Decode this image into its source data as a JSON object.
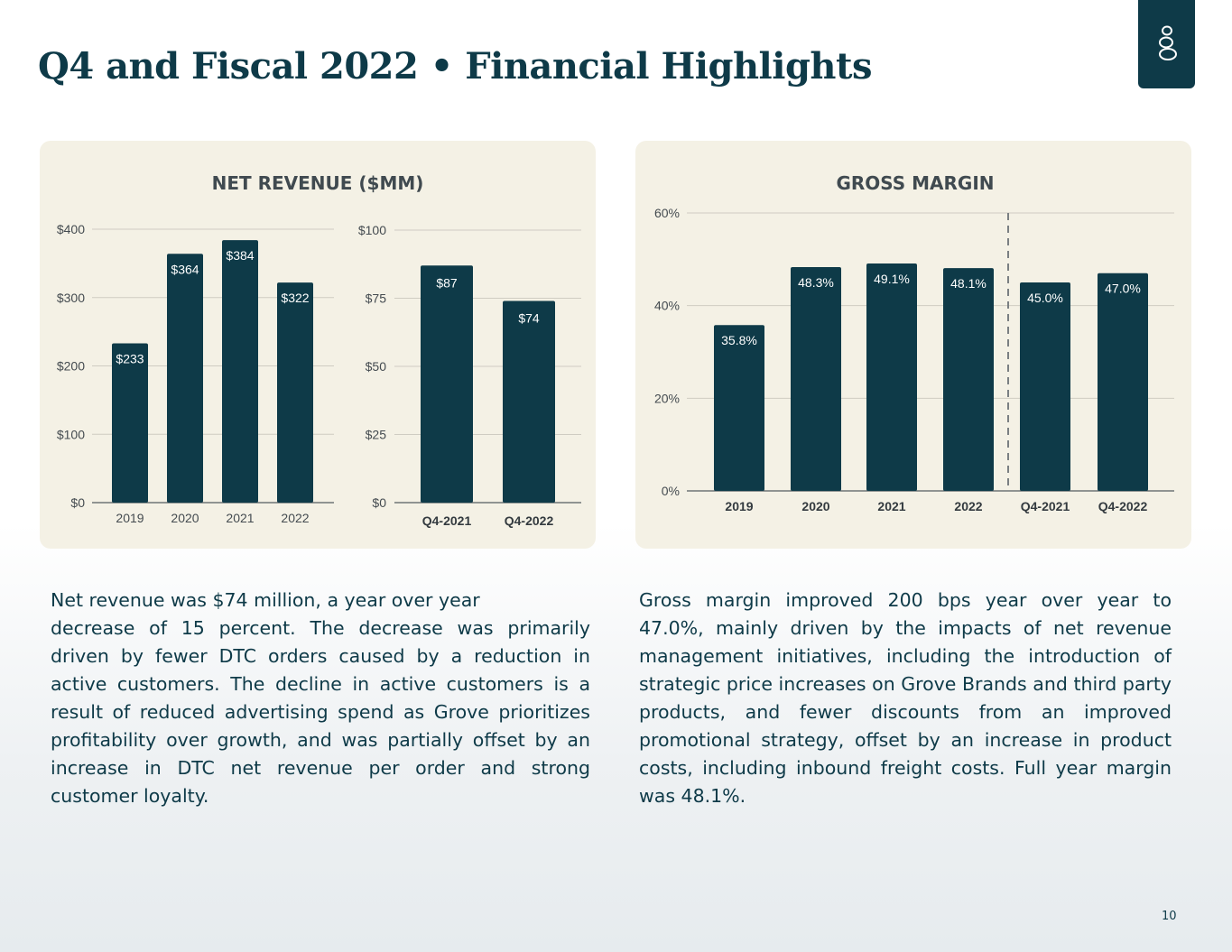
{
  "slide": {
    "title": "Q4 and Fiscal 2022 • Financial Highlights",
    "page_number": "10",
    "brand_color": "#0e3a48",
    "logo": "grove-logo-icon"
  },
  "chart_data": [
    {
      "type": "bar",
      "title": "NET REVENUE ($MM)",
      "categories": [
        "2019",
        "2020",
        "2021",
        "2022"
      ],
      "values": [
        233,
        364,
        384,
        322
      ],
      "data_labels": [
        "$233",
        "$364",
        "$384",
        "$322"
      ],
      "yticks": [
        "$0",
        "$100",
        "$200",
        "$300",
        "$400"
      ],
      "ylim": [
        0,
        400
      ],
      "grid": true
    },
    {
      "type": "bar",
      "categories": [
        "Q4-2021",
        "Q4-2022"
      ],
      "values": [
        87,
        74
      ],
      "data_labels": [
        "$87",
        "$74"
      ],
      "yticks": [
        "$0",
        "$25",
        "$50",
        "$75",
        "$100"
      ],
      "ylim": [
        0,
        100
      ],
      "grid": true
    },
    {
      "type": "bar",
      "title": "GROSS MARGIN",
      "categories": [
        "2019",
        "2020",
        "2021",
        "2022",
        "Q4-2021",
        "Q4-2022"
      ],
      "values": [
        35.8,
        48.3,
        49.1,
        48.1,
        45.0,
        47.0
      ],
      "data_labels": [
        "35.8%",
        "48.3%",
        "49.1%",
        "48.1%",
        "45.0%",
        "47.0%"
      ],
      "yticks": [
        "0%",
        "20%",
        "40%",
        "60%"
      ],
      "ylim": [
        0,
        60
      ],
      "grid": true,
      "annotations": [
        "dashed divider between 2022 and Q4-2021"
      ]
    }
  ],
  "text": {
    "revenue_lead": "Net revenue was $74 million, a year over year",
    "revenue_body": "decrease of 15 percent. The decrease was primarily driven by fewer DTC orders caused by a reduction in active customers. The decline in active customers is a result of reduced advertising spend as Grove prioritizes profitability over growth, and was partially offset by an increase in DTC net revenue per order and strong customer loyalty.",
    "margin_body": "Gross margin improved 200 bps year over year to 47.0%, mainly driven by the impacts of net revenue management initiatives, including the introduction of strategic price increases on Grove Brands and third party products, and fewer discounts from an improved promotional strategy, offset by an increase in product costs, including inbound freight costs. Full year margin was 48.1%."
  }
}
